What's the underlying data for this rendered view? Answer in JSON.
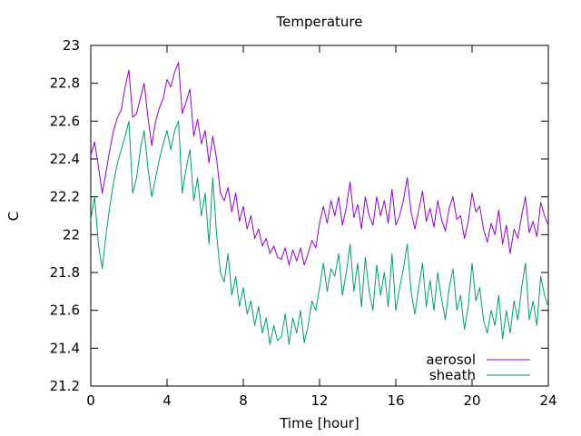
{
  "chart_data": {
    "type": "line",
    "title": "Temperature",
    "xlabel": "Time [hour]",
    "ylabel": "C",
    "xlim": [
      0,
      24
    ],
    "ylim": [
      21.2,
      23
    ],
    "xticks": [
      0,
      4,
      8,
      12,
      16,
      20,
      24
    ],
    "xtick_labels": [
      "0",
      "4",
      "8",
      "12",
      "16",
      "20",
      "24"
    ],
    "yticks": [
      21.2,
      21.4,
      21.6,
      21.8,
      22,
      22.2,
      22.4,
      22.6,
      22.8,
      23
    ],
    "ytick_labels": [
      "21.2",
      "21.4",
      "21.6",
      "21.8",
      "22",
      "22.2",
      "22.4",
      "22.6",
      "22.8",
      "23"
    ],
    "grid": false,
    "legend_position": "bottom-right",
    "series": [
      {
        "name": "aerosol",
        "color": "#9400d3",
        "x": [
          0,
          0.2,
          0.4,
          0.6,
          0.8,
          1.0,
          1.2,
          1.4,
          1.6,
          1.8,
          2.0,
          2.2,
          2.4,
          2.6,
          2.8,
          3.0,
          3.2,
          3.4,
          3.6,
          3.8,
          4.0,
          4.2,
          4.4,
          4.6,
          4.8,
          5.0,
          5.2,
          5.4,
          5.6,
          5.8,
          6.0,
          6.2,
          6.4,
          6.6,
          6.8,
          7.0,
          7.2,
          7.4,
          7.6,
          7.8,
          8.0,
          8.2,
          8.4,
          8.6,
          8.8,
          9.0,
          9.2,
          9.4,
          9.6,
          9.8,
          10.0,
          10.2,
          10.4,
          10.6,
          10.8,
          11.0,
          11.2,
          11.4,
          11.6,
          11.8,
          12.0,
          12.2,
          12.4,
          12.6,
          12.8,
          13.0,
          13.2,
          13.4,
          13.6,
          13.8,
          14.0,
          14.2,
          14.4,
          14.6,
          14.8,
          15.0,
          15.2,
          15.4,
          15.6,
          15.8,
          16.0,
          16.2,
          16.4,
          16.6,
          16.8,
          17.0,
          17.2,
          17.4,
          17.6,
          17.8,
          18.0,
          18.2,
          18.4,
          18.6,
          18.8,
          19.0,
          19.2,
          19.4,
          19.6,
          19.8,
          20.0,
          20.2,
          20.4,
          20.6,
          20.8,
          21.0,
          21.2,
          21.4,
          21.6,
          21.8,
          22.0,
          22.2,
          22.4,
          22.6,
          22.8,
          23.0,
          23.2,
          23.4,
          23.6,
          23.8,
          24.0
        ],
        "y": [
          22.42,
          22.49,
          22.36,
          22.22,
          22.33,
          22.45,
          22.55,
          22.62,
          22.66,
          22.78,
          22.87,
          22.62,
          22.64,
          22.72,
          22.8,
          22.62,
          22.47,
          22.6,
          22.67,
          22.72,
          22.82,
          22.78,
          22.86,
          22.91,
          22.64,
          22.7,
          22.77,
          22.52,
          22.61,
          22.48,
          22.55,
          22.38,
          22.52,
          22.4,
          22.22,
          22.18,
          22.25,
          22.12,
          22.22,
          22.07,
          22.15,
          22.03,
          22.1,
          21.98,
          22.03,
          21.94,
          21.98,
          21.9,
          21.94,
          21.88,
          21.87,
          21.93,
          21.84,
          21.92,
          21.86,
          21.93,
          21.84,
          21.9,
          21.97,
          21.93,
          22.06,
          22.15,
          22.06,
          22.18,
          22.1,
          22.2,
          22.05,
          22.14,
          22.28,
          22.09,
          22.16,
          22.03,
          22.2,
          22.1,
          22.05,
          22.2,
          22.1,
          22.18,
          22.06,
          22.24,
          22.05,
          22.1,
          22.18,
          22.3,
          22.12,
          22.03,
          22.13,
          22.23,
          22.07,
          22.14,
          22.04,
          22.18,
          22.08,
          22.02,
          22.14,
          22.2,
          22.08,
          22.1,
          21.98,
          22.07,
          22.22,
          22.12,
          22.15,
          22.03,
          21.96,
          22.06,
          22.0,
          22.13,
          21.95,
          22.05,
          21.9,
          22.03,
          21.98,
          22.1,
          22.2,
          22.01,
          22.07,
          21.99,
          22.17,
          22.1,
          22.05
        ]
      },
      {
        "name": "sheath",
        "color": "#009e73",
        "x": [
          0,
          0.2,
          0.4,
          0.6,
          0.8,
          1.0,
          1.2,
          1.4,
          1.6,
          1.8,
          2.0,
          2.2,
          2.4,
          2.6,
          2.8,
          3.0,
          3.2,
          3.4,
          3.6,
          3.8,
          4.0,
          4.2,
          4.4,
          4.6,
          4.8,
          5.0,
          5.2,
          5.4,
          5.6,
          5.8,
          6.0,
          6.2,
          6.4,
          6.6,
          6.8,
          7.0,
          7.2,
          7.4,
          7.6,
          7.8,
          8.0,
          8.2,
          8.4,
          8.6,
          8.8,
          9.0,
          9.2,
          9.4,
          9.6,
          9.8,
          10.0,
          10.2,
          10.4,
          10.6,
          10.8,
          11.0,
          11.2,
          11.4,
          11.6,
          11.8,
          12.0,
          12.2,
          12.4,
          12.6,
          12.8,
          13.0,
          13.2,
          13.4,
          13.6,
          13.8,
          14.0,
          14.2,
          14.4,
          14.6,
          14.8,
          15.0,
          15.2,
          15.4,
          15.6,
          15.8,
          16.0,
          16.2,
          16.4,
          16.6,
          16.8,
          17.0,
          17.2,
          17.4,
          17.6,
          17.8,
          18.0,
          18.2,
          18.4,
          18.6,
          18.8,
          19.0,
          19.2,
          19.4,
          19.6,
          19.8,
          20.0,
          20.2,
          20.4,
          20.6,
          20.8,
          21.0,
          21.2,
          21.4,
          21.6,
          21.8,
          22.0,
          22.2,
          22.4,
          22.6,
          22.8,
          23.0,
          23.2,
          23.4,
          23.6,
          23.8,
          24.0
        ],
        "y": [
          22.08,
          22.2,
          21.95,
          21.82,
          22.0,
          22.15,
          22.28,
          22.38,
          22.45,
          22.52,
          22.6,
          22.22,
          22.3,
          22.45,
          22.55,
          22.35,
          22.2,
          22.3,
          22.4,
          22.48,
          22.55,
          22.45,
          22.55,
          22.6,
          22.22,
          22.35,
          22.45,
          22.18,
          22.3,
          22.1,
          22.22,
          21.95,
          22.3,
          22.0,
          21.8,
          21.75,
          21.9,
          21.68,
          21.78,
          21.62,
          21.72,
          21.58,
          21.65,
          21.52,
          21.62,
          21.48,
          21.56,
          21.42,
          21.52,
          21.44,
          21.46,
          21.58,
          21.42,
          21.56,
          21.48,
          21.6,
          21.43,
          21.52,
          21.65,
          21.6,
          21.72,
          21.85,
          21.7,
          21.82,
          21.78,
          21.9,
          21.68,
          21.8,
          21.95,
          21.7,
          21.85,
          21.62,
          21.88,
          21.7,
          21.6,
          21.84,
          21.68,
          21.8,
          21.62,
          21.9,
          21.6,
          21.72,
          21.82,
          21.95,
          21.7,
          21.58,
          21.72,
          21.85,
          21.62,
          21.76,
          21.6,
          21.8,
          21.66,
          21.55,
          21.72,
          21.82,
          21.6,
          21.68,
          21.5,
          21.62,
          21.85,
          21.65,
          21.72,
          21.55,
          21.48,
          21.6,
          21.52,
          21.68,
          21.45,
          21.6,
          21.48,
          21.65,
          21.55,
          21.72,
          21.85,
          21.55,
          21.65,
          21.52,
          21.78,
          21.68,
          21.62
        ]
      }
    ]
  }
}
